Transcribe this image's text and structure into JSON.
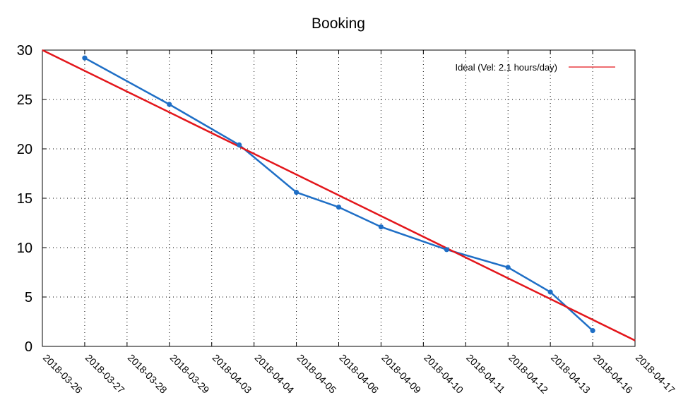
{
  "chart_data": {
    "type": "line",
    "title": "Booking",
    "xlabel": "",
    "ylabel": "",
    "categories": [
      "2018-03-26",
      "2018-03-27",
      "2018-03-28",
      "2018-03-29",
      "2018-04-03",
      "2018-04-04",
      "2018-04-05",
      "2018-04-06",
      "2018-04-09",
      "2018-04-10",
      "2018-04-11",
      "2018-04-12",
      "2018-04-13",
      "2018-04-16",
      "2018-04-17"
    ],
    "ylim": [
      0,
      30
    ],
    "yticks": [
      0,
      5,
      10,
      15,
      20,
      25,
      30
    ],
    "grid": true,
    "legend_position": "top-right",
    "series": [
      {
        "name": "",
        "kind": "actual",
        "color": "#1f6fc6",
        "points": [
          {
            "x": 1,
            "y": 29.2
          },
          {
            "x": 3,
            "y": 24.5
          },
          {
            "x": 4.65,
            "y": 20.4
          },
          {
            "x": 6,
            "y": 15.6
          },
          {
            "x": 7,
            "y": 14.1
          },
          {
            "x": 8,
            "y": 12.1
          },
          {
            "x": 9.55,
            "y": 9.8
          },
          {
            "x": 11,
            "y": 8.0
          },
          {
            "x": 12,
            "y": 5.5
          },
          {
            "x": 13,
            "y": 1.6
          }
        ]
      },
      {
        "name": "Ideal (Vel: 2.1 hours/day)",
        "kind": "ideal",
        "color": "#e3161b",
        "points": [
          {
            "x": 0,
            "y": 30.0
          },
          {
            "x": 14,
            "y": 0.6
          }
        ]
      }
    ]
  }
}
